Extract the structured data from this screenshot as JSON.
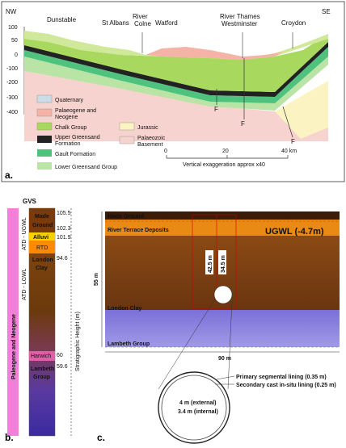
{
  "panel_a": {
    "tag": "a.",
    "compass": {
      "left": "NW",
      "right": "SE"
    },
    "y_ticks": [
      "100",
      "50",
      "0",
      "-100",
      "-200",
      "-300",
      "-400"
    ],
    "places": {
      "dunstable": "Dunstable",
      "st_albans": "St Albans",
      "river_colne_1": "River",
      "river_colne_2": "Colne",
      "watford": "Watford",
      "river_thames": "River Thames",
      "westminster": "Westminster",
      "croydon": "Croydon"
    },
    "faults": [
      "F",
      "F",
      "F"
    ],
    "legend": {
      "quaternary": "Quaternary",
      "palaeogene_1": "Palaeogene and",
      "palaeogene_2": "Neogene",
      "chalk": "Chalk Group",
      "upper_greensand_1": "Upper Greensand",
      "upper_greensand_2": "Formation",
      "gault": "Gault Formation",
      "lower_greensand": "Lower Greensand Group",
      "jurassic": "Jurassic",
      "palaeozoic_1": "Palaeozoic",
      "palaeozoic_2": "Basement"
    },
    "scale": {
      "t0": "0",
      "t20": "20",
      "t40": "40 km",
      "note": "Vertical exaggeration approx x40"
    }
  },
  "panel_b": {
    "tag": "b.",
    "title": "GVS",
    "side_label": "Paleogene and Neogene",
    "atd_upper": "ATD - UGWL",
    "atd_lower": "ATD - LGWL",
    "axis_label": "Stratigraphic Height (m)",
    "units": {
      "made_ground_1": "Made",
      "made_ground_2": "Ground",
      "alluvi": "Alluvi",
      "rtd": "RTD",
      "london_clay_1": "London",
      "london_clay_2": "Clay",
      "harwich": "Harwich",
      "lambeth_1": "Lambeth",
      "lambeth_2": "Group"
    },
    "heights": [
      "105.5",
      "102.3",
      "101.9",
      "94.6",
      "60",
      "59.6"
    ]
  },
  "panel_c": {
    "tag": "c.",
    "made_ground": "Made Ground",
    "river_terrace": "River Terrace Deposits",
    "ugwl": "UGWL (-4.7m)",
    "depth_1": "42.5 m",
    "depth_2": "34.5 m",
    "height": "55 m",
    "london_clay": "London Clay",
    "lambeth": "Lambeth Group",
    "width": "90 m",
    "primary_lining": "Primary segmental lining (0.35 m)",
    "secondary_lining": "Secondary cast in-situ lining (0.25 m)",
    "external": "4 m (external)",
    "internal": "3.4 m (internal)"
  }
}
